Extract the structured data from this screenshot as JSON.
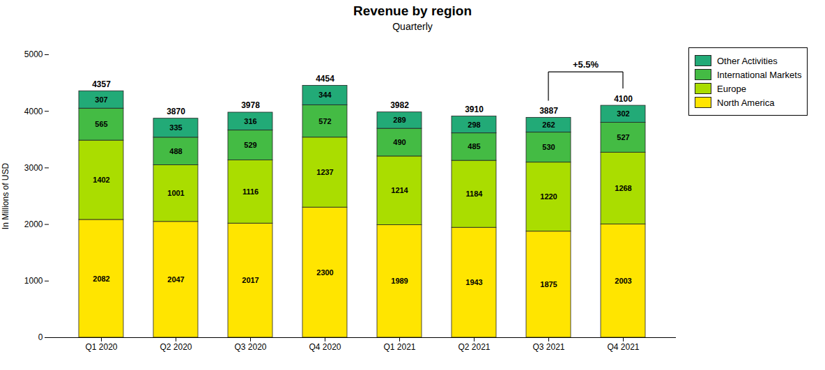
{
  "chart_data": {
    "type": "bar",
    "stacked": true,
    "title": "Revenue by region",
    "subtitle": "Quarterly",
    "ylabel": "In Millions of USD",
    "categories": [
      "Q1 2020",
      "Q2 2020",
      "Q3 2020",
      "Q4 2020",
      "Q1 2021",
      "Q2 2021",
      "Q3 2021",
      "Q4 2021"
    ],
    "series": [
      {
        "name": "North America",
        "color": "#FFE500",
        "values": [
          2082,
          2047,
          2017,
          2300,
          1989,
          1943,
          1875,
          2003
        ]
      },
      {
        "name": "Europe",
        "color": "#AADD00",
        "values": [
          1402,
          1001,
          1116,
          1237,
          1214,
          1184,
          1220,
          1268
        ]
      },
      {
        "name": "International Markets",
        "color": "#44BB44",
        "values": [
          565,
          488,
          529,
          572,
          490,
          485,
          530,
          527
        ]
      },
      {
        "name": "Other Activities",
        "color": "#22AA77",
        "values": [
          307,
          335,
          316,
          344,
          289,
          298,
          262,
          302
        ]
      }
    ],
    "totals": [
      4357,
      3870,
      3978,
      4454,
      3982,
      3910,
      3887,
      4100
    ],
    "data_labels": true,
    "annotations": [
      {
        "text": "+5.5%",
        "from": "Q3 2021",
        "to": "Q4 2021"
      }
    ],
    "ylim": [
      0,
      5000
    ],
    "yticks": [
      0,
      1000,
      2000,
      3000,
      4000,
      5000
    ],
    "grid": false,
    "legend": "right"
  }
}
